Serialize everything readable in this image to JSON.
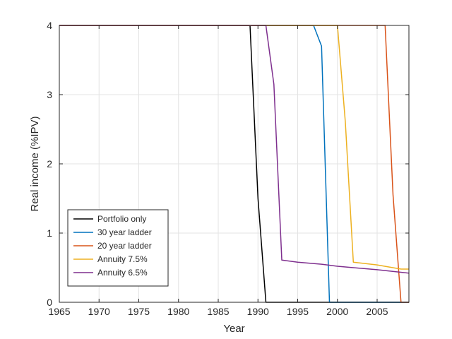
{
  "chart_data": {
    "type": "line",
    "title": "",
    "xlabel": "Year",
    "ylabel": "Real income (%IPV)",
    "xlim": [
      1965,
      2009
    ],
    "ylim": [
      0,
      4
    ],
    "xticks": [
      1965,
      1970,
      1975,
      1980,
      1985,
      1990,
      1995,
      2000,
      2005
    ],
    "yticks": [
      0,
      1,
      2,
      3,
      4
    ],
    "grid": true,
    "legend_position": "bottom-left",
    "series": [
      {
        "name": "Portfolio only",
        "color": "#000000",
        "x": [
          1965,
          1989,
          1990,
          1991,
          2009
        ],
        "y": [
          4,
          4,
          1.5,
          0,
          0
        ]
      },
      {
        "name": "30 year ladder",
        "color": "#0072BD",
        "x": [
          1965,
          1997,
          1998,
          1999,
          2009
        ],
        "y": [
          4,
          4,
          3.7,
          0,
          0
        ]
      },
      {
        "name": "20 year ladder",
        "color": "#D95319",
        "x": [
          1965,
          2006,
          2007,
          2008,
          2009
        ],
        "y": [
          4,
          4,
          1.55,
          0,
          0
        ]
      },
      {
        "name": "Annuity 7.5%",
        "color": "#EDB120",
        "x": [
          1965,
          2000,
          2001,
          2002,
          2005,
          2008,
          2009
        ],
        "y": [
          4,
          4,
          2.6,
          0.58,
          0.54,
          0.48,
          0.48
        ]
      },
      {
        "name": "Annuity 6.5%",
        "color": "#7E2F8E",
        "x": [
          1965,
          1991,
          1992,
          1993,
          1995,
          1998,
          2000,
          2005,
          2009
        ],
        "y": [
          4,
          4,
          3.15,
          0.61,
          0.58,
          0.55,
          0.52,
          0.47,
          0.42
        ]
      }
    ]
  }
}
